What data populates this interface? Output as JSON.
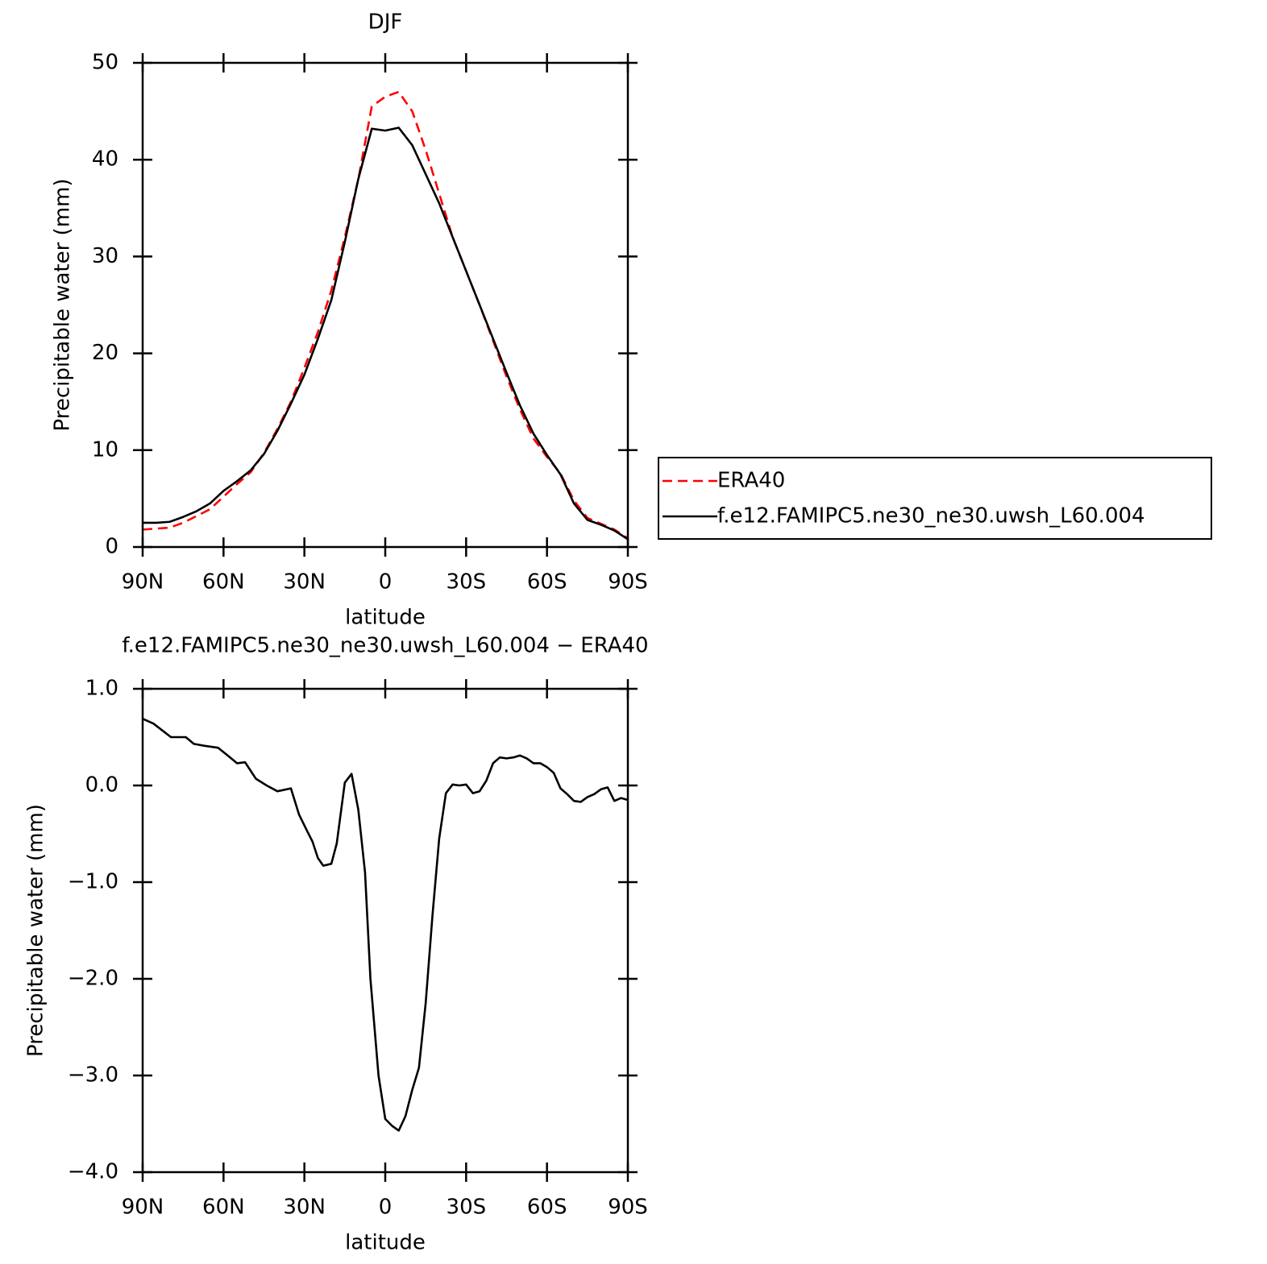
{
  "chart_data": [
    {
      "type": "line",
      "title": "DJF",
      "xlabel": "latitude",
      "ylabel": "Precipitable water (mm)",
      "x": [
        90,
        85,
        80,
        75,
        70,
        65,
        60,
        55,
        50,
        45,
        40,
        35,
        30,
        25,
        20,
        15,
        10,
        5,
        0,
        -5,
        -10,
        -15,
        -20,
        -25,
        -30,
        -35,
        -40,
        -45,
        -50,
        -55,
        -60,
        -65,
        -70,
        -75,
        -80,
        -85,
        -90
      ],
      "series": [
        {
          "name": "ERA40",
          "color": "#ff0000",
          "style": "dashed",
          "values": [
            1.8,
            1.9,
            2.0,
            2.5,
            3.2,
            3.9,
            5.2,
            6.5,
            7.7,
            9.7,
            12.2,
            15.0,
            18.5,
            22.2,
            26.5,
            32.0,
            38.0,
            45.5,
            46.5,
            47.0,
            45.0,
            41.0,
            36.5,
            32.0,
            28.5,
            25.0,
            21.3,
            17.6,
            14.2,
            11.2,
            9.3,
            7.6,
            4.8,
            3.0,
            2.4,
            1.8,
            0.9
          ]
        },
        {
          "name": "f.e12.FAMIPC5.ne30_ne30.uwsh_L60.004",
          "color": "#000000",
          "style": "solid",
          "values": [
            2.5,
            2.5,
            2.6,
            3.1,
            3.7,
            4.5,
            5.8,
            6.8,
            7.9,
            9.6,
            12.0,
            14.8,
            17.8,
            21.5,
            25.5,
            31.5,
            38.0,
            43.2,
            43.0,
            43.3,
            41.5,
            38.5,
            35.5,
            32.0,
            28.5,
            25.0,
            21.5,
            18.0,
            14.6,
            11.7,
            9.5,
            7.5,
            4.5,
            2.8,
            2.3,
            1.7,
            0.8
          ]
        }
      ],
      "xlim": [
        90,
        -90
      ],
      "xticks": [
        {
          "value": 90,
          "label": "90N"
        },
        {
          "value": 60,
          "label": "60N"
        },
        {
          "value": 30,
          "label": "30N"
        },
        0,
        {
          "value": -30,
          "label": "30S"
        },
        {
          "value": -60,
          "label": "60S"
        },
        {
          "value": -90,
          "label": "90S"
        }
      ],
      "ylim": [
        0,
        50
      ],
      "yticks": [
        0,
        10,
        20,
        30,
        40,
        50
      ],
      "legend": "right"
    },
    {
      "type": "line",
      "title": "f.e12.FAMIPC5.ne30_ne30.uwsh_L60.004 − ERA40",
      "xlabel": "latitude",
      "ylabel": "Precipitable water (mm)",
      "x": [
        90,
        86,
        79.5,
        74,
        71,
        67,
        62,
        58,
        55,
        52,
        48,
        44,
        40,
        35,
        32,
        29,
        27,
        25,
        23,
        20,
        18,
        15,
        12.5,
        10,
        7.5,
        5.5,
        2.5,
        0,
        -2.5,
        -5,
        -7.5,
        -10,
        -12.5,
        -15,
        -17.5,
        -20,
        -22.5,
        -25,
        -27.5,
        -30,
        -32.5,
        -35,
        -37.5,
        -40,
        -42.5,
        -45,
        -47.5,
        -50,
        -52.5,
        -55,
        -57.5,
        -60,
        -62.5,
        -65,
        -67.5,
        -70,
        -72.5,
        -75,
        -77.5,
        -80,
        -82.5,
        -85,
        -87.5,
        -90
      ],
      "series": [
        {
          "color": "#000000",
          "style": "solid",
          "values": [
            0.69,
            0.64,
            0.5,
            0.5,
            0.43,
            0.41,
            0.39,
            0.3,
            0.23,
            0.24,
            0.07,
            0.0,
            -0.06,
            -0.03,
            -0.3,
            -0.47,
            -0.58,
            -0.75,
            -0.83,
            -0.81,
            -0.6,
            0.03,
            0.12,
            -0.25,
            -0.9,
            -2.0,
            -3.0,
            -3.45,
            -3.52,
            -3.57,
            -3.42,
            -3.15,
            -2.92,
            -2.25,
            -1.35,
            -0.55,
            -0.08,
            0.01,
            0.0,
            0.01,
            -0.08,
            -0.06,
            0.05,
            0.23,
            0.29,
            0.28,
            0.29,
            0.31,
            0.28,
            0.23,
            0.23,
            0.19,
            0.13,
            -0.03,
            -0.09,
            -0.16,
            -0.17,
            -0.12,
            -0.09,
            -0.04,
            -0.02,
            -0.16,
            -0.13,
            -0.15
          ]
        }
      ],
      "xlim": [
        90,
        -90
      ],
      "xticks": [
        {
          "value": 90,
          "label": "90N"
        },
        {
          "value": 60,
          "label": "60N"
        },
        {
          "value": 30,
          "label": "30N"
        },
        0,
        {
          "value": -30,
          "label": "30S"
        },
        {
          "value": -60,
          "label": "60S"
        },
        {
          "value": -90,
          "label": "90S"
        }
      ],
      "ylim": [
        -4,
        1
      ],
      "yticks": [
        {
          "value": -4,
          "label": "−4.0"
        },
        {
          "value": -3,
          "label": "−3.0"
        },
        {
          "value": -2,
          "label": "−2.0"
        },
        {
          "value": -1,
          "label": "−1.0"
        },
        {
          "value": 0,
          "label": "0.0"
        },
        {
          "value": 1,
          "label": "1.0"
        }
      ]
    }
  ]
}
